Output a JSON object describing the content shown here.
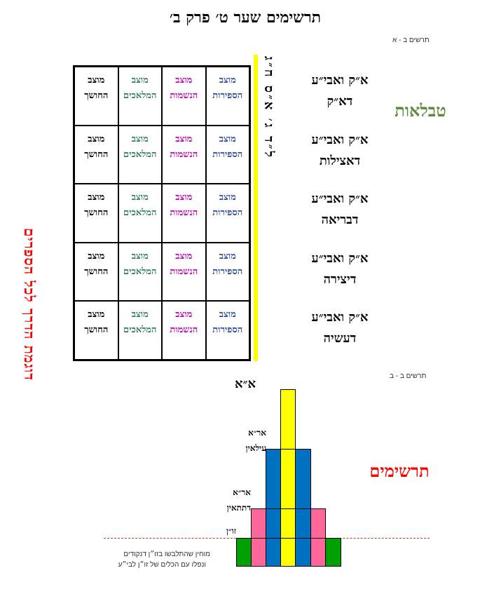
{
  "title": "תרשימים שער ט׳ פרק ב׳",
  "diagram_a": {
    "label": "תרשים ב - א",
    "side_title": "טבלאות",
    "vertical_label": "ל״ד ג׳ א״ס ח״ג",
    "left_caption": "דוגמת הדרך לכל הספרים",
    "columns": [
      {
        "line1": "מוצב",
        "line2": "הספירות",
        "color": "#2b4aa0"
      },
      {
        "line1": "מוצב",
        "line2": "הנשמות",
        "color": "#c000c0"
      },
      {
        "line1": "מוצב",
        "line2": "המלאכים",
        "color": "#2e7d5b"
      },
      {
        "line1": "מוצב",
        "line2": "החושך",
        "color": "#000000"
      }
    ],
    "rows": [
      {
        "line1": "א״ק ואבי״ע",
        "line2": "דא״ק"
      },
      {
        "line1": "א״ק ואבי״ע",
        "line2": "דאצילות"
      },
      {
        "line1": "א״ק ואבי״ע",
        "line2": "דבריאה"
      },
      {
        "line1": "א״ק ואבי״ע",
        "line2": "דיצירה"
      },
      {
        "line1": "א״ק ואבי״ע",
        "line2": "דעשיה"
      }
    ]
  },
  "diagram_b": {
    "label": "תרשים ב - ב",
    "side_title": "תרשימים",
    "levels": [
      {
        "line1": "א״א",
        "line2": ""
      },
      {
        "line1": "אר״א",
        "line2": "עילאין"
      },
      {
        "line1": "אר״א",
        "line2": "דתתאין"
      },
      {
        "line1": "זו״ן",
        "line2": ""
      }
    ],
    "note_line1": "מוחין שהתלבשו בזו״ן דנקודים",
    "note_line2": "ונפלו עם הכלים של זו״ן לבי״ע",
    "colors": {
      "yellow": "#ffff00",
      "blue": "#0070c0",
      "pink": "#ff6699",
      "green": "#00a000"
    }
  }
}
